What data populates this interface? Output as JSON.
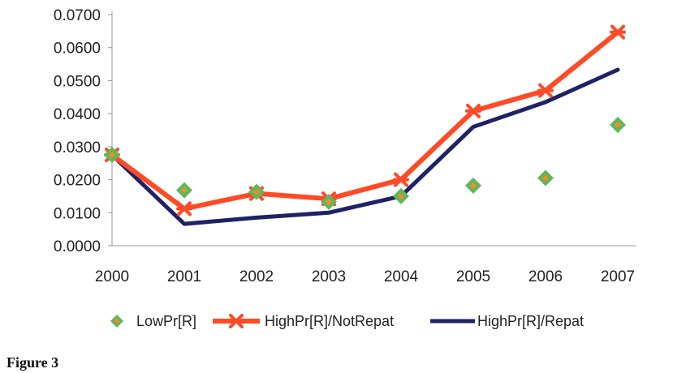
{
  "chart_data": {
    "type": "line",
    "x": [
      "2000",
      "2001",
      "2002",
      "2003",
      "2004",
      "2005",
      "2006",
      "2007"
    ],
    "ylim": [
      0,
      0.07
    ],
    "yticks": [
      "0.0000",
      "0.0100",
      "0.0200",
      "0.0300",
      "0.0400",
      "0.0500",
      "0.0600",
      "0.0700"
    ],
    "grid": false,
    "legend_position": "bottom",
    "series": [
      {
        "name": "LowPr[R]",
        "style": "markers",
        "color": "#5cb85c",
        "inner_color": "#f28c28",
        "values": [
          0.0275,
          0.0168,
          0.0163,
          0.0133,
          0.015,
          0.0182,
          0.0205,
          0.0366
        ]
      },
      {
        "name": "HighPr[R]/NotRepat",
        "style": "line-markers",
        "color": "#ff4a26",
        "values": [
          0.0275,
          0.0112,
          0.0158,
          0.0142,
          0.02,
          0.0408,
          0.047,
          0.0647
        ]
      },
      {
        "name": "HighPr[R]/Repat",
        "style": "line",
        "color": "#1f2266",
        "values": [
          0.0275,
          0.0066,
          0.0085,
          0.01,
          0.015,
          0.036,
          0.0435,
          0.0533
        ]
      }
    ]
  },
  "caption": "Figure 3"
}
